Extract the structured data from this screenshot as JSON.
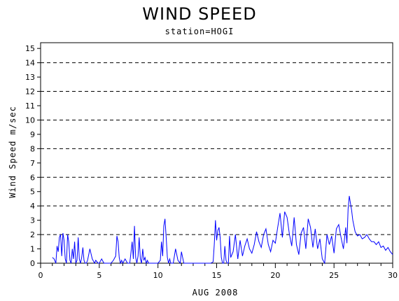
{
  "chart_data": {
    "type": "line",
    "title": "WIND SPEED",
    "subtitle": "station=HOGI",
    "xlabel": "AUG 2008",
    "ylabel": "Wind Speed m/sec",
    "xlim": [
      0,
      30
    ],
    "ylim": [
      0,
      15.4
    ],
    "x_ticks": [
      0,
      5,
      10,
      15,
      20,
      25,
      30
    ],
    "y_ticks": [
      0,
      1,
      2,
      3,
      4,
      5,
      6,
      7,
      8,
      9,
      10,
      11,
      12,
      13,
      14,
      15
    ],
    "reference_lines": [
      2,
      4,
      6,
      8,
      10,
      12,
      14
    ],
    "grid": false,
    "line_color": "#0000ff",
    "series": [
      {
        "x": [
          1.0,
          1.15,
          1.3,
          1.4,
          1.5,
          1.6,
          1.7,
          1.8,
          1.9,
          2.0,
          2.1,
          2.2,
          2.3,
          2.4,
          2.5,
          2.6,
          2.7,
          2.8,
          2.9,
          3.0,
          3.1,
          3.2,
          3.3,
          3.4,
          3.5,
          3.6,
          3.7,
          3.8,
          3.9,
          4.0,
          4.2,
          4.4,
          4.6,
          4.7,
          4.8,
          4.9,
          5.0,
          5.2,
          5.4,
          5.6,
          5.8,
          6.0,
          6.2,
          6.4,
          6.5,
          6.6,
          6.7,
          6.8,
          6.9,
          7.0,
          7.2,
          7.4,
          7.6,
          7.8,
          7.9,
          8.0,
          8.1,
          8.2,
          8.3,
          8.4,
          8.5,
          8.6,
          8.7,
          8.8,
          8.9,
          9.0,
          9.1,
          9.2,
          9.4,
          9.6,
          9.8,
          10.0,
          10.2,
          10.3,
          10.4,
          10.5,
          10.6,
          10.7,
          10.8,
          10.9,
          11.0,
          11.1,
          11.3,
          11.5,
          11.7,
          11.9,
          12.0,
          12.2,
          12.5,
          13.0,
          13.5,
          14.0,
          14.5,
          14.7,
          14.8,
          14.9,
          15.0,
          15.1,
          15.2,
          15.3,
          15.4,
          15.5,
          15.6,
          15.7,
          15.8,
          15.9,
          16.0,
          16.1,
          16.2,
          16.4,
          16.6,
          16.8,
          17.0,
          17.2,
          17.4,
          17.6,
          17.8,
          18.0,
          18.2,
          18.4,
          18.6,
          18.8,
          19.0,
          19.2,
          19.4,
          19.6,
          19.8,
          20.0,
          20.2,
          20.4,
          20.6,
          20.8,
          21.0,
          21.2,
          21.4,
          21.6,
          21.8,
          22.0,
          22.2,
          22.4,
          22.6,
          22.8,
          23.0,
          23.2,
          23.4,
          23.6,
          23.8,
          24.0,
          24.2,
          24.4,
          24.6,
          24.8,
          25.0,
          25.2,
          25.4,
          25.6,
          25.8,
          26.0,
          26.1,
          26.2,
          26.3,
          26.4,
          26.5,
          26.6,
          26.8,
          27.0,
          27.2,
          27.4,
          27.6,
          27.8,
          28.0,
          28.2,
          28.4,
          28.6,
          28.8,
          29.0,
          29.2,
          29.4,
          29.6,
          29.8,
          30.0
        ],
        "y": [
          0.4,
          0.3,
          0.0,
          1.2,
          0.8,
          1.8,
          2.0,
          0.5,
          2.1,
          1.6,
          0.3,
          0.0,
          2.0,
          1.5,
          0.2,
          0.0,
          1.0,
          0.3,
          1.5,
          0.0,
          0.2,
          1.8,
          0.3,
          0.0,
          0.4,
          1.1,
          0.2,
          0.0,
          0.0,
          0.2,
          1.0,
          0.3,
          0.0,
          0.2,
          0.1,
          0.0,
          0.0,
          0.3,
          0.0,
          0.0,
          0.0,
          0.0,
          0.2,
          0.5,
          1.9,
          1.5,
          0.4,
          0.0,
          0.2,
          0.0,
          0.3,
          0.0,
          0.0,
          1.5,
          0.3,
          2.6,
          0.4,
          0.0,
          0.5,
          1.8,
          0.3,
          0.0,
          1.0,
          0.2,
          0.4,
          0.0,
          0.2,
          0.0,
          0.0,
          0.0,
          0.0,
          0.0,
          0.2,
          1.5,
          0.5,
          2.6,
          3.1,
          1.8,
          0.4,
          0.0,
          0.3,
          0.0,
          0.0,
          1.0,
          0.2,
          0.0,
          0.8,
          0.0,
          0.0,
          0.0,
          0.0,
          0.0,
          0.0,
          0.1,
          1.3,
          3.0,
          1.6,
          2.3,
          2.5,
          1.8,
          0.4,
          0.0,
          0.0,
          1.2,
          0.2,
          0.0,
          0.0,
          1.9,
          0.4,
          0.8,
          2.0,
          0.3,
          1.6,
          0.5,
          1.2,
          1.7,
          1.0,
          0.7,
          1.3,
          2.2,
          1.5,
          1.1,
          2.0,
          2.4,
          1.3,
          0.8,
          1.6,
          1.4,
          2.5,
          3.5,
          1.8,
          3.6,
          3.2,
          2.0,
          1.2,
          3.2,
          1.3,
          0.6,
          2.1,
          2.5,
          1.0,
          3.1,
          2.5,
          1.1,
          2.4,
          1.0,
          1.7,
          0.3,
          0.0,
          2.0,
          1.3,
          1.9,
          0.7,
          2.4,
          2.7,
          1.8,
          1.0,
          2.5,
          1.4,
          3.8,
          4.7,
          4.2,
          3.7,
          3.0,
          2.2,
          1.9,
          2.0,
          1.7,
          1.8,
          2.0,
          1.7,
          1.5,
          1.5,
          1.3,
          1.5,
          1.1,
          1.2,
          0.9,
          1.1,
          0.8,
          0.6
        ]
      }
    ]
  }
}
